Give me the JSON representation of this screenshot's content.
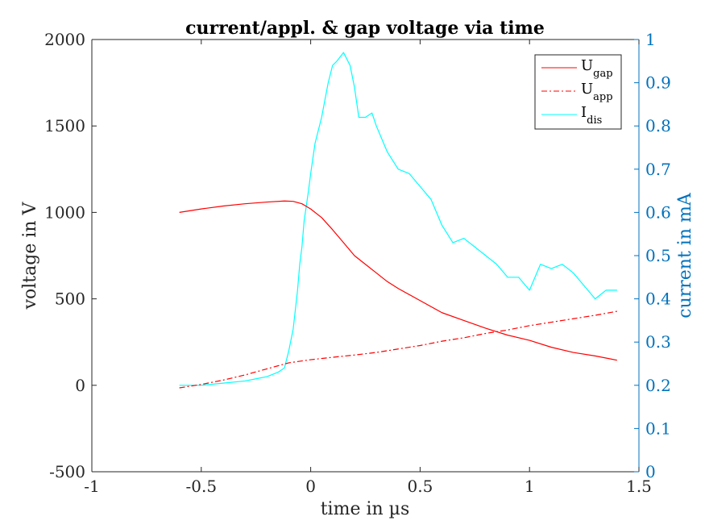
{
  "chart_data": {
    "type": "line",
    "title": "current/appl. & gap voltage via time",
    "xlabel": "time in µs",
    "ylabel_left": "voltage in V",
    "ylabel_right": "current in mA",
    "xlim": [
      -1,
      1.5
    ],
    "ylim_left": [
      -500,
      2000
    ],
    "ylim_right": [
      0,
      1
    ],
    "x_ticks": [
      "-1",
      "-0.5",
      "0",
      "0.5",
      "1",
      "1.5"
    ],
    "y_left_ticks": [
      "-500",
      "0",
      "500",
      "1000",
      "1500",
      "2000"
    ],
    "y_right_ticks": [
      "0",
      "0.1",
      "0.2",
      "0.3",
      "0.4",
      "0.5",
      "0.6",
      "0.7",
      "0.8",
      "0.9",
      "1"
    ],
    "grid": false,
    "legend_placement": "top-right",
    "colors": {
      "gap": "#FF0000",
      "app": "#FF0000",
      "dis": "#00FFFF",
      "right_axis": "#0072BD",
      "left_axis": "#262626"
    },
    "legend": [
      {
        "base": "U",
        "sub": "gap",
        "style": "solid"
      },
      {
        "base": "U",
        "sub": "app",
        "style": "dashdot"
      },
      {
        "base": "I",
        "sub": "dis",
        "style": "solid"
      }
    ],
    "series": [
      {
        "name": "U_gap",
        "axis": "left",
        "x": [
          -0.6,
          -0.5,
          -0.4,
          -0.3,
          -0.2,
          -0.12,
          -0.08,
          -0.04,
          0.0,
          0.05,
          0.1,
          0.15,
          0.2,
          0.25,
          0.3,
          0.35,
          0.4,
          0.5,
          0.6,
          0.7,
          0.8,
          0.9,
          1.0,
          1.1,
          1.2,
          1.3,
          1.4
        ],
        "y": [
          1000,
          1020,
          1037,
          1050,
          1060,
          1066,
          1064,
          1050,
          1020,
          970,
          900,
          825,
          750,
          700,
          650,
          600,
          560,
          490,
          420,
          375,
          330,
          290,
          260,
          220,
          190,
          170,
          145
        ]
      },
      {
        "name": "U_app",
        "axis": "left",
        "x": [
          -0.6,
          -0.5,
          -0.4,
          -0.3,
          -0.2,
          -0.1,
          0.0,
          0.1,
          0.2,
          0.3,
          0.4,
          0.5,
          0.6,
          0.7,
          0.8,
          0.9,
          1.0,
          1.1,
          1.2,
          1.3,
          1.4
        ],
        "y": [
          -15,
          5,
          30,
          60,
          95,
          130,
          148,
          162,
          175,
          190,
          210,
          230,
          255,
          275,
          300,
          320,
          345,
          365,
          385,
          405,
          428
        ]
      },
      {
        "name": "I_dis",
        "axis": "right",
        "x": [
          -0.6,
          -0.5,
          -0.4,
          -0.3,
          -0.25,
          -0.2,
          -0.15,
          -0.12,
          -0.1,
          -0.08,
          -0.06,
          -0.05,
          -0.04,
          -0.03,
          -0.01,
          0.0,
          0.02,
          0.05,
          0.08,
          0.1,
          0.12,
          0.15,
          0.18,
          0.2,
          0.22,
          0.25,
          0.28,
          0.3,
          0.35,
          0.4,
          0.45,
          0.5,
          0.55,
          0.6,
          0.65,
          0.7,
          0.75,
          0.8,
          0.85,
          0.9,
          0.95,
          1.0,
          1.05,
          1.1,
          1.15,
          1.2,
          1.25,
          1.3,
          1.35,
          1.4
        ],
        "y": [
          0.2,
          0.2,
          0.205,
          0.21,
          0.215,
          0.22,
          0.23,
          0.24,
          0.28,
          0.33,
          0.42,
          0.48,
          0.52,
          0.58,
          0.65,
          0.69,
          0.76,
          0.82,
          0.9,
          0.94,
          0.95,
          0.97,
          0.94,
          0.89,
          0.82,
          0.82,
          0.83,
          0.8,
          0.74,
          0.7,
          0.69,
          0.66,
          0.63,
          0.57,
          0.53,
          0.54,
          0.52,
          0.5,
          0.48,
          0.45,
          0.45,
          0.42,
          0.48,
          0.47,
          0.48,
          0.46,
          0.43,
          0.4,
          0.42,
          0.42
        ]
      }
    ]
  }
}
